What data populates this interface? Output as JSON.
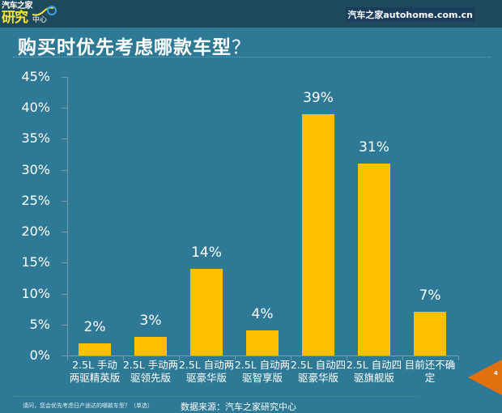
{
  "header": {
    "logo_line1": "汽车之家",
    "logo_line2": "研究",
    "logo_line3": "中心",
    "brand": "汽车之家autohome.com.cn"
  },
  "title": {
    "text": "购买时优先考虑哪款车型",
    "question_mark": "？"
  },
  "footer": {
    "footnote": "请问，您会优先考虑日产途达的哪款车型？（单选）",
    "source": "数据来源：汽车之家研究中心",
    "page_number": "4"
  },
  "colors": {
    "background": "#2e7a96",
    "header_bar": "#1e4a5c",
    "bar": "#ffc000",
    "page_tab": "#e3700f"
  },
  "chart_data": {
    "type": "bar",
    "title": "购买时优先考虑哪款车型？",
    "xlabel": "",
    "ylabel": "",
    "ylim": [
      0,
      45
    ],
    "yticks": [
      "0%",
      "5%",
      "10%",
      "15%",
      "20%",
      "25%",
      "30%",
      "35%",
      "40%",
      "45%"
    ],
    "grid": false,
    "legend": null,
    "categories": [
      "2.5L 手动两驱精英版",
      "2.5L 手动两驱领先版",
      "2.5L 自动两驱豪华版",
      "2.5L 自动两驱智享版",
      "2.5L 自动四驱豪华版",
      "2.5L 自动四驱旗舰版",
      "目前还不确定"
    ],
    "category_lines": [
      [
        "2.5L 手动",
        "两驱精英版"
      ],
      [
        "2.5L 手动两",
        "驱领先版"
      ],
      [
        "2.5L 自动两",
        "驱豪华版"
      ],
      [
        "2.5L 自动两",
        "驱智享版"
      ],
      [
        "2.5L 自动四",
        "驱豪华版"
      ],
      [
        "2.5L 自动四",
        "驱旗舰版"
      ],
      [
        "目前还不确",
        "定"
      ]
    ],
    "values": [
      2,
      3,
      14,
      4,
      39,
      31,
      7
    ],
    "value_labels": [
      "2%",
      "3%",
      "14%",
      "4%",
      "39%",
      "31%",
      "7%"
    ],
    "unit": "%"
  }
}
